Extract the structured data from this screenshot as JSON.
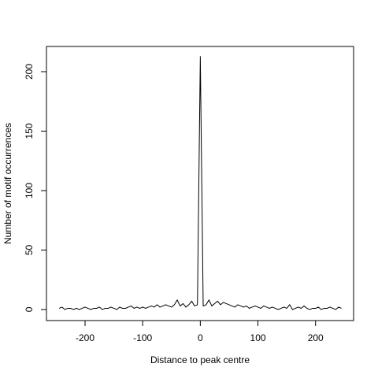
{
  "chart_data": {
    "type": "line",
    "x_label": "Distance to peak centre",
    "y_label": "Number of motif occurrences",
    "x": [
      -245,
      -240,
      -235,
      -230,
      -225,
      -220,
      -215,
      -210,
      -205,
      -200,
      -195,
      -190,
      -185,
      -180,
      -175,
      -170,
      -165,
      -160,
      -155,
      -150,
      -145,
      -140,
      -135,
      -130,
      -125,
      -120,
      -115,
      -110,
      -105,
      -100,
      -95,
      -90,
      -85,
      -80,
      -75,
      -70,
      -65,
      -60,
      -55,
      -50,
      -45,
      -40,
      -35,
      -30,
      -25,
      -20,
      -15,
      -10,
      -5,
      0,
      5,
      10,
      15,
      20,
      25,
      30,
      35,
      40,
      45,
      50,
      55,
      60,
      65,
      70,
      75,
      80,
      85,
      90,
      95,
      100,
      105,
      110,
      115,
      120,
      125,
      130,
      135,
      140,
      145,
      150,
      155,
      160,
      165,
      170,
      175,
      180,
      185,
      190,
      195,
      200,
      205,
      210,
      215,
      220,
      225,
      230,
      235,
      240,
      245
    ],
    "series": [
      {
        "color": "#000000",
        "values": [
          1,
          2,
          0,
          1,
          1,
          0,
          1,
          0,
          1,
          2,
          1,
          0,
          1,
          1,
          2,
          0,
          1,
          1,
          2,
          1,
          0,
          2,
          1,
          1,
          2,
          3,
          1,
          2,
          1,
          2,
          1,
          2,
          3,
          2,
          4,
          2,
          3,
          4,
          3,
          2,
          4,
          8,
          3,
          5,
          2,
          4,
          7,
          3,
          4,
          213,
          3,
          4,
          8,
          3,
          5,
          7,
          4,
          6,
          5,
          4,
          3,
          2,
          4,
          3,
          2,
          3,
          1,
          2,
          3,
          2,
          1,
          3,
          2,
          1,
          2,
          1,
          0,
          1,
          2,
          1,
          4,
          0,
          1,
          2,
          1,
          3,
          1,
          0,
          1,
          1,
          2,
          0,
          1,
          1,
          2,
          1,
          0,
          2,
          1
        ]
      }
    ],
    "xlim": [
      -267,
      266
    ],
    "ylim": [
      -9.3,
      221.2
    ],
    "xticks": [
      -200,
      -100,
      0,
      100,
      200
    ],
    "yticks": [
      0,
      50,
      100,
      150,
      200
    ]
  }
}
